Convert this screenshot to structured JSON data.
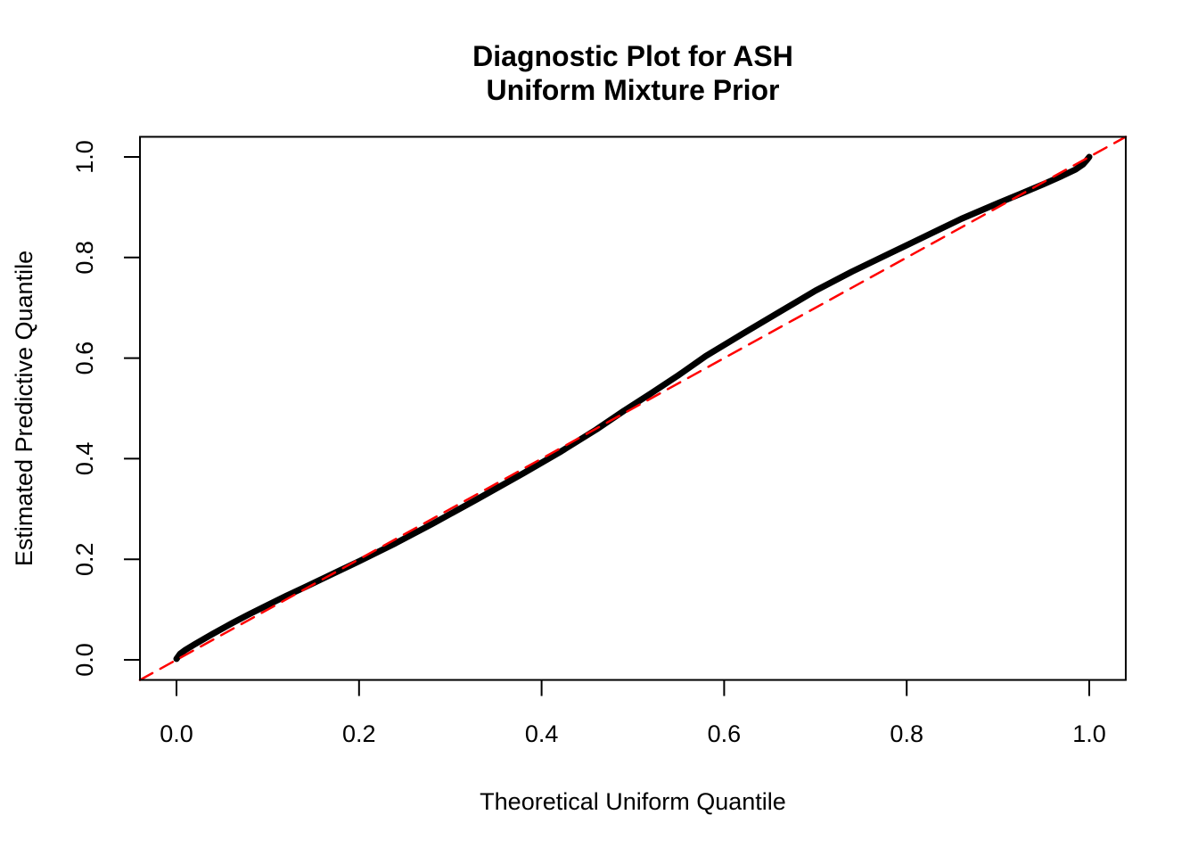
{
  "page": {
    "background_color": "#ffffff",
    "foreground_color": "#000000"
  },
  "chart_data": {
    "type": "line",
    "title_lines": [
      "Diagnostic Plot for ASH",
      "Uniform Mixture Prior"
    ],
    "xlabel": "Theoretical Uniform Quantile",
    "ylabel": "Estimated Predictive Quantile",
    "xlim": [
      0,
      1
    ],
    "ylim": [
      0,
      1
    ],
    "axis_padding_fraction": 0.04,
    "grid": "off",
    "legend": "none",
    "x_ticks": [
      0,
      0.2,
      0.4,
      0.6,
      0.8,
      1.0
    ],
    "x_tick_labels": [
      "0.0",
      "0.2",
      "0.4",
      "0.6",
      "0.8",
      "1.0"
    ],
    "y_ticks": [
      0,
      0.2,
      0.4,
      0.6,
      0.8,
      1.0
    ],
    "y_tick_labels": [
      "0.0",
      "0.2",
      "0.4",
      "0.6",
      "0.8",
      "1.0"
    ],
    "frame_color": "#000000",
    "series": [
      {
        "name": "estimated-predictive-quantile-curve",
        "type": "line",
        "color": "#000000",
        "line_width": 7,
        "line_style": "solid",
        "points": [
          [
            0.0,
            0.002
          ],
          [
            0.004,
            0.012
          ],
          [
            0.01,
            0.02
          ],
          [
            0.02,
            0.031
          ],
          [
            0.04,
            0.052
          ],
          [
            0.06,
            0.072
          ],
          [
            0.08,
            0.091
          ],
          [
            0.1,
            0.109
          ],
          [
            0.12,
            0.127
          ],
          [
            0.14,
            0.144
          ],
          [
            0.17,
            0.17
          ],
          [
            0.2,
            0.196
          ],
          [
            0.24,
            0.232
          ],
          [
            0.28,
            0.27
          ],
          [
            0.33,
            0.32
          ],
          [
            0.38,
            0.371
          ],
          [
            0.42,
            0.413
          ],
          [
            0.46,
            0.458
          ],
          [
            0.49,
            0.495
          ],
          [
            0.52,
            0.53
          ],
          [
            0.55,
            0.566
          ],
          [
            0.58,
            0.604
          ],
          [
            0.62,
            0.648
          ],
          [
            0.66,
            0.691
          ],
          [
            0.7,
            0.734
          ],
          [
            0.74,
            0.772
          ],
          [
            0.78,
            0.807
          ],
          [
            0.82,
            0.842
          ],
          [
            0.86,
            0.877
          ],
          [
            0.9,
            0.908
          ],
          [
            0.92,
            0.923
          ],
          [
            0.95,
            0.946
          ],
          [
            0.97,
            0.962
          ],
          [
            0.985,
            0.975
          ],
          [
            0.993,
            0.985
          ],
          [
            0.997,
            0.993
          ],
          [
            1.0,
            1.0
          ]
        ]
      },
      {
        "name": "identity-reference-line",
        "type": "line",
        "color": "#FF0000",
        "line_width": 2.5,
        "line_style": "dashed",
        "dash_pattern": [
          16,
          10
        ],
        "points": [
          [
            -0.04,
            -0.04
          ],
          [
            1.04,
            1.04
          ]
        ]
      }
    ]
  }
}
